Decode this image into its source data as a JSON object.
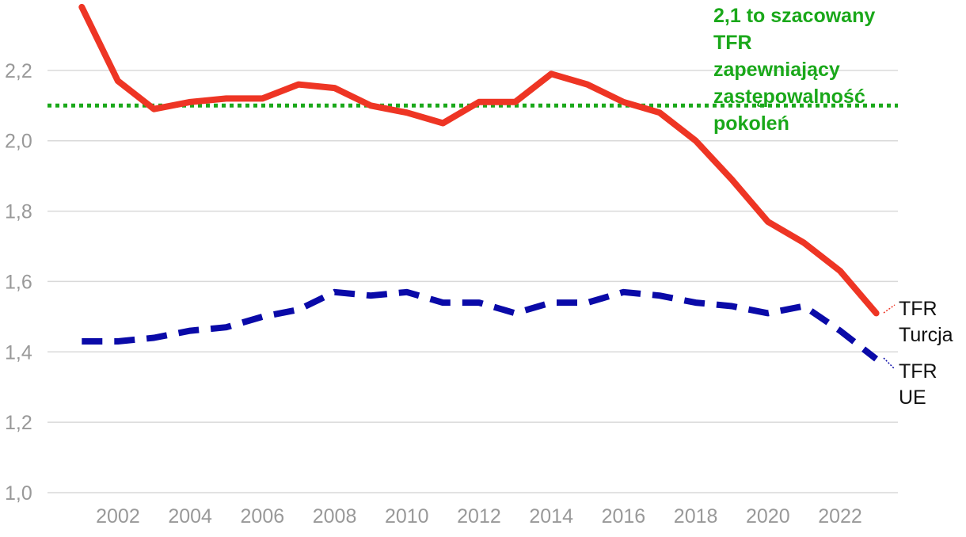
{
  "chart_data": {
    "type": "line",
    "title": "",
    "xlabel": "",
    "ylabel": "",
    "xlim": [
      2000.05,
      2023.6
    ],
    "ylim": [
      1.0,
      2.4
    ],
    "y_ticks": [
      1.0,
      1.2,
      1.4,
      1.6,
      1.8,
      2.0,
      2.2
    ],
    "y_tick_labels": [
      "1,0",
      "1,2",
      "1,4",
      "1,6",
      "1,8",
      "2,0",
      "2,2"
    ],
    "x_ticks": [
      2002,
      2004,
      2006,
      2008,
      2010,
      2012,
      2014,
      2016,
      2018,
      2020,
      2022
    ],
    "x_tick_labels": [
      "2002",
      "2004",
      "2006",
      "2008",
      "2010",
      "2012",
      "2014",
      "2016",
      "2018",
      "2020",
      "2022"
    ],
    "grid": true,
    "x": [
      2001,
      2002,
      2003,
      2004,
      2005,
      2006,
      2007,
      2008,
      2009,
      2010,
      2011,
      2012,
      2013,
      2014,
      2015,
      2016,
      2017,
      2018,
      2019,
      2020,
      2021,
      2022,
      2023
    ],
    "series": [
      {
        "name": "TFR Turcja",
        "label_lines": [
          "TFR",
          "Turcja"
        ],
        "color": "#ee3524",
        "style": "solid",
        "values": [
          2.38,
          2.17,
          2.09,
          2.11,
          2.12,
          2.12,
          2.16,
          2.15,
          2.1,
          2.08,
          2.05,
          2.11,
          2.11,
          2.19,
          2.16,
          2.11,
          2.08,
          2.0,
          1.89,
          1.77,
          1.71,
          1.63,
          1.51
        ]
      },
      {
        "name": "TFR UE",
        "label_lines": [
          "TFR",
          "UE"
        ],
        "color": "#0a0aa8",
        "style": "dashed",
        "values": [
          1.43,
          1.43,
          1.44,
          1.46,
          1.47,
          1.5,
          1.52,
          1.57,
          1.56,
          1.57,
          1.54,
          1.54,
          1.51,
          1.54,
          1.54,
          1.57,
          1.56,
          1.54,
          1.53,
          1.51,
          1.53,
          1.46,
          1.38
        ]
      }
    ],
    "reference_line": {
      "value": 2.1,
      "color": "#1aa81a",
      "style": "dotted",
      "label_lines": [
        "2,1 to szacowany",
        "TFR",
        "zapewniający",
        "zastępowalność",
        "pokoleń"
      ]
    }
  }
}
